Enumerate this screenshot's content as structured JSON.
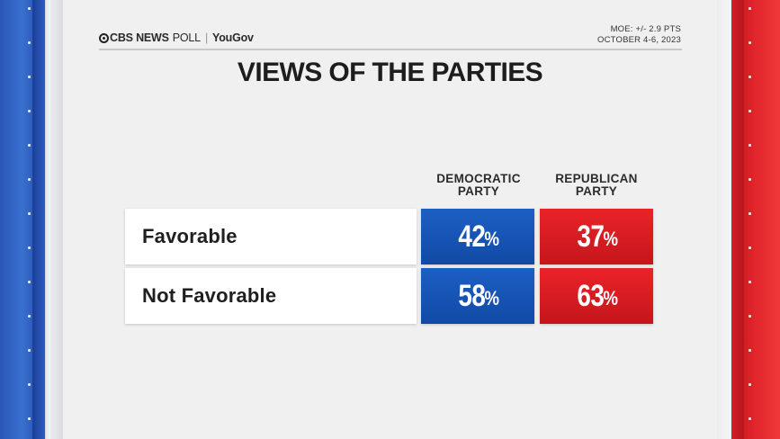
{
  "header": {
    "logo_cbs": "CBS NEWS",
    "logo_poll": "POLL",
    "logo_yougov": "YouGov",
    "moe": "MOE: +/- 2.9 PTS",
    "dates": "OCTOBER 4-6, 2023"
  },
  "chart_data": {
    "type": "table",
    "title": "VIEWS OF THE PARTIES",
    "columns": [
      "DEMOCRATIC PARTY",
      "REPUBLICAN PARTY"
    ],
    "column_lines": [
      [
        "DEMOCRATIC",
        "PARTY"
      ],
      [
        "REPUBLICAN",
        "PARTY"
      ]
    ],
    "rows": [
      "Favorable",
      "Not Favorable"
    ],
    "series": [
      {
        "name": "DEMOCRATIC PARTY",
        "values": [
          42,
          58
        ]
      },
      {
        "name": "REPUBLICAN PARTY",
        "values": [
          37,
          63
        ]
      }
    ],
    "unit": "%"
  },
  "colors": {
    "democratic": "#1a5cbf",
    "republican": "#e02226"
  }
}
